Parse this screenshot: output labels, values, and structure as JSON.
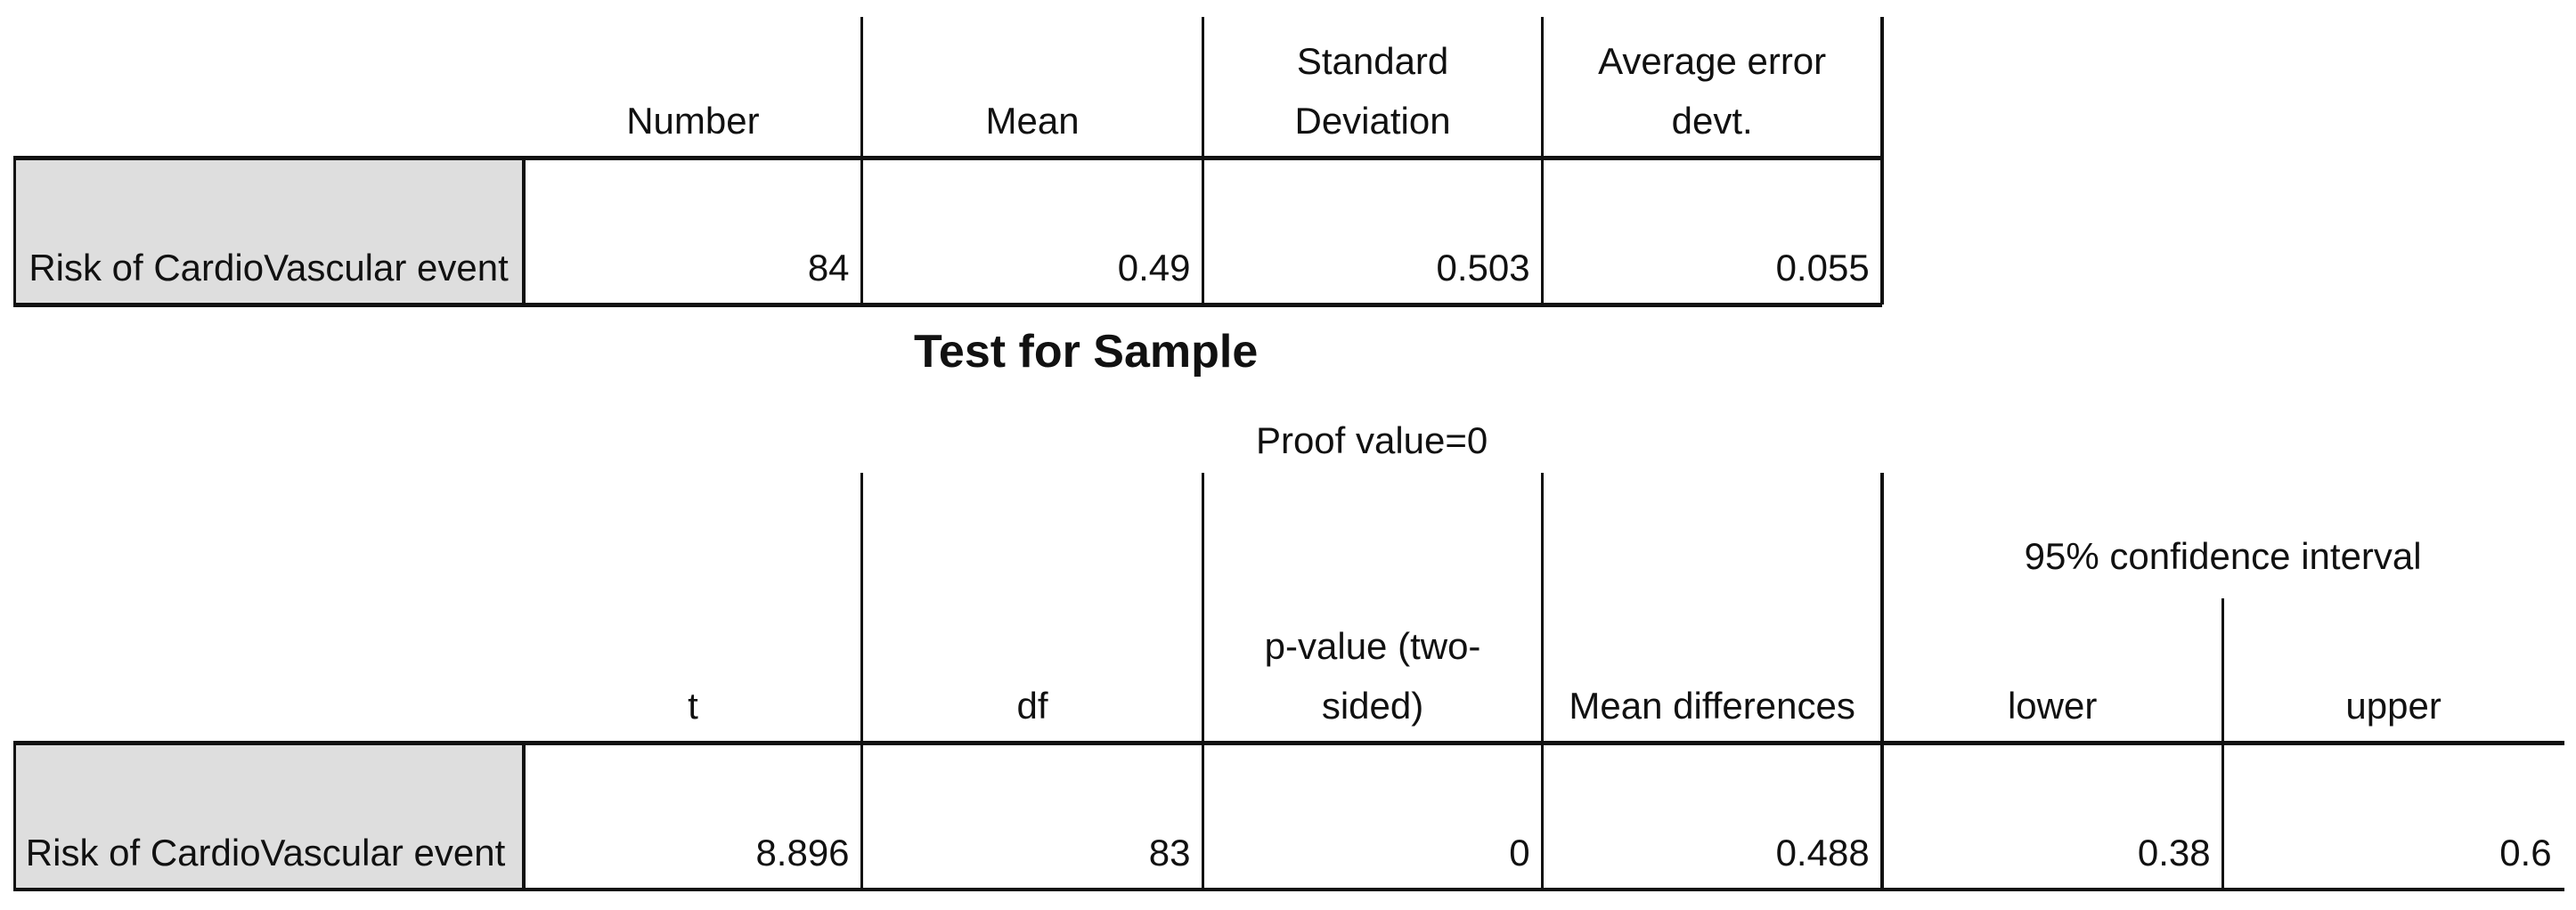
{
  "table1": {
    "header": [
      "Number",
      "Mean",
      "Standard Deviation",
      "Average error devt."
    ],
    "row": {
      "label": "Risk of CardioVascular event",
      "values": [
        84,
        0.49,
        0.503,
        0.055
      ]
    }
  },
  "title": "Test for Sample",
  "table2": {
    "group": "Proof value=0",
    "subgroup": "95% confidence interval",
    "header": [
      "t",
      "df",
      "p-value (two-sided)",
      "Mean differences",
      "lower",
      "upper"
    ],
    "row": {
      "label": "Risk of CardioVascular event",
      "values": [
        8.896,
        83,
        0,
        0.488,
        0.38,
        0.6
      ]
    }
  }
}
